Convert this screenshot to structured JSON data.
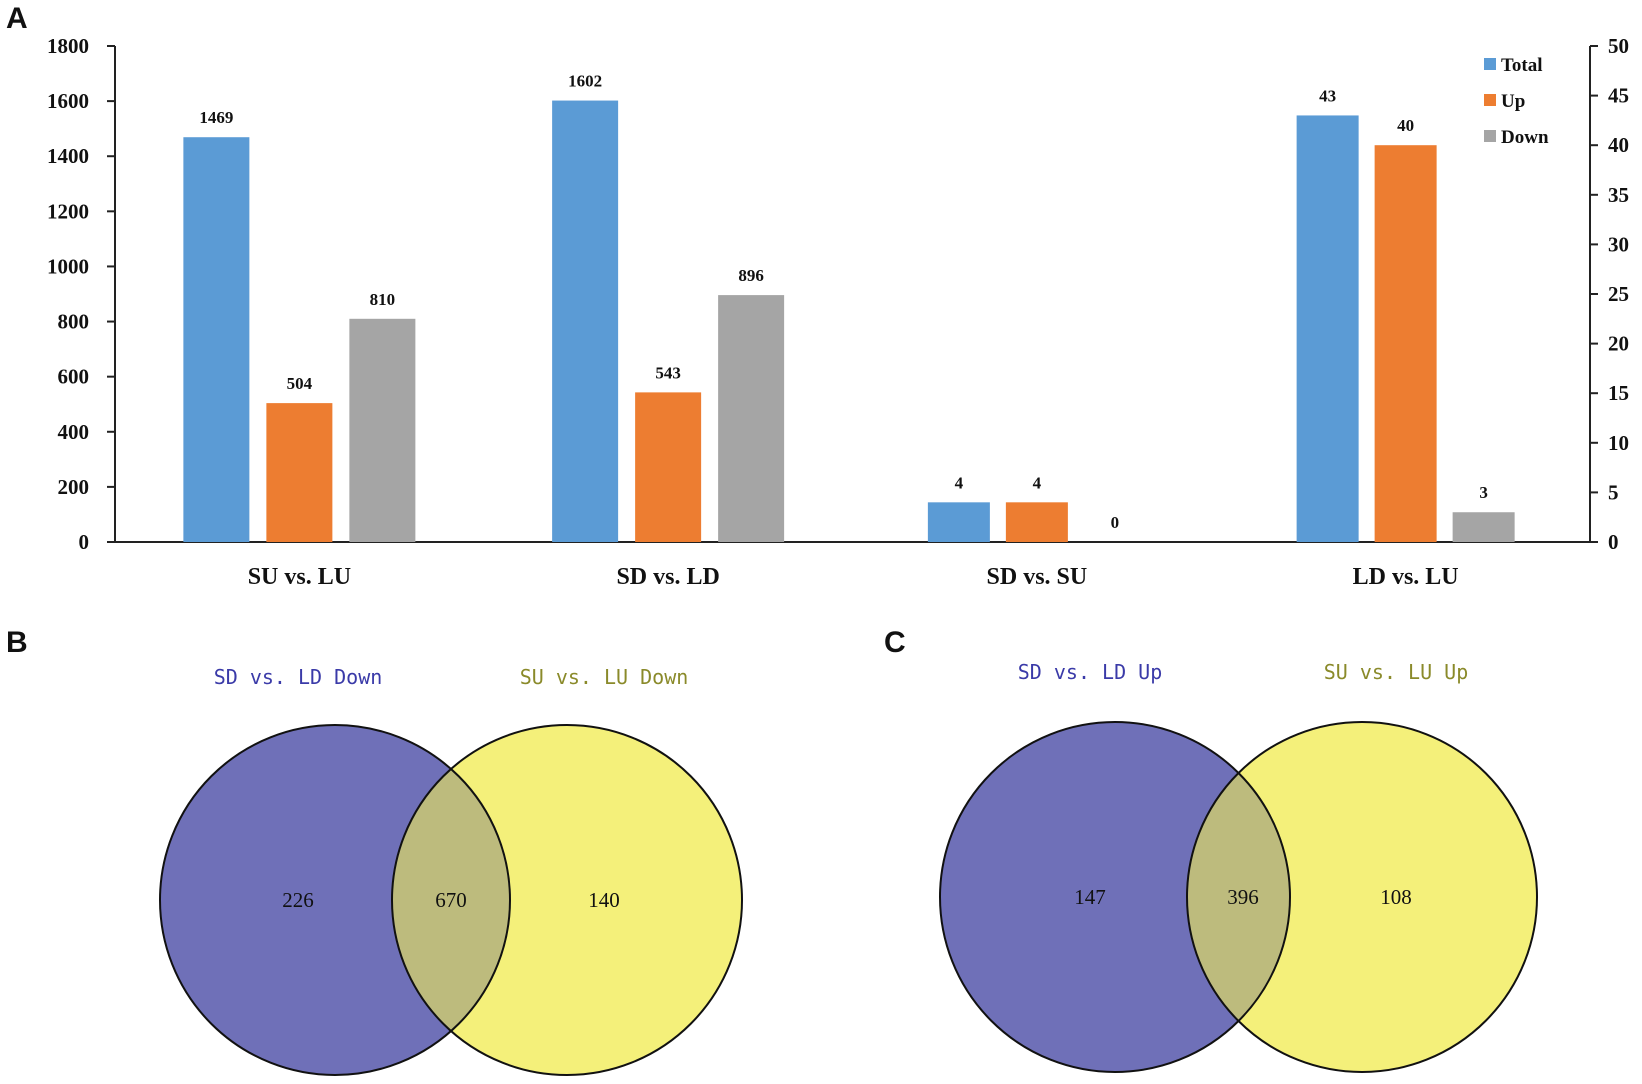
{
  "panels": {
    "a": "A",
    "b": "B",
    "c": "C"
  },
  "colors": {
    "total": "#5b9bd5",
    "up": "#ed7d31",
    "down": "#a5a5a5",
    "venn_left": "#6f70b8",
    "venn_right": "#f4f07a",
    "venn_overlap": "#bdbb7d",
    "venn_left_title": "#3a3aa8",
    "venn_right_title": "#8a8a2a"
  },
  "chart_data": [
    {
      "type": "bar",
      "title": "",
      "categories": [
        "SU vs. LU",
        "SD vs. LD",
        "SD vs. SU",
        "LD vs. LU"
      ],
      "series": [
        {
          "name": "Total",
          "key": "total",
          "values": [
            1469,
            1602,
            4,
            43
          ]
        },
        {
          "name": "Up",
          "key": "up",
          "values": [
            504,
            543,
            4,
            40
          ]
        },
        {
          "name": "Down",
          "key": "down",
          "values": [
            810,
            896,
            0,
            3
          ]
        }
      ],
      "axis_per_category": [
        "left",
        "left",
        "right",
        "right"
      ],
      "left_axis": {
        "ylim": [
          0,
          1800
        ],
        "ticks": [
          0,
          200,
          400,
          600,
          800,
          1000,
          1200,
          1400,
          1600,
          1800
        ]
      },
      "right_axis": {
        "ylim": [
          0,
          50
        ],
        "ticks": [
          0,
          5,
          10,
          15,
          20,
          25,
          30,
          35,
          40,
          45,
          50
        ]
      },
      "legend_position": "top-right",
      "xlabel": "",
      "ylabel": ""
    },
    {
      "type": "venn",
      "sets": [
        {
          "label": "SD vs. LD Down",
          "only": 226
        },
        {
          "label": "SU vs. LU Down",
          "only": 140
        }
      ],
      "intersection": 670
    },
    {
      "type": "venn",
      "sets": [
        {
          "label": "SD vs. LD Up",
          "only": 147
        },
        {
          "label": "SU vs. LU Up",
          "only": 108
        }
      ],
      "intersection": 396
    }
  ]
}
